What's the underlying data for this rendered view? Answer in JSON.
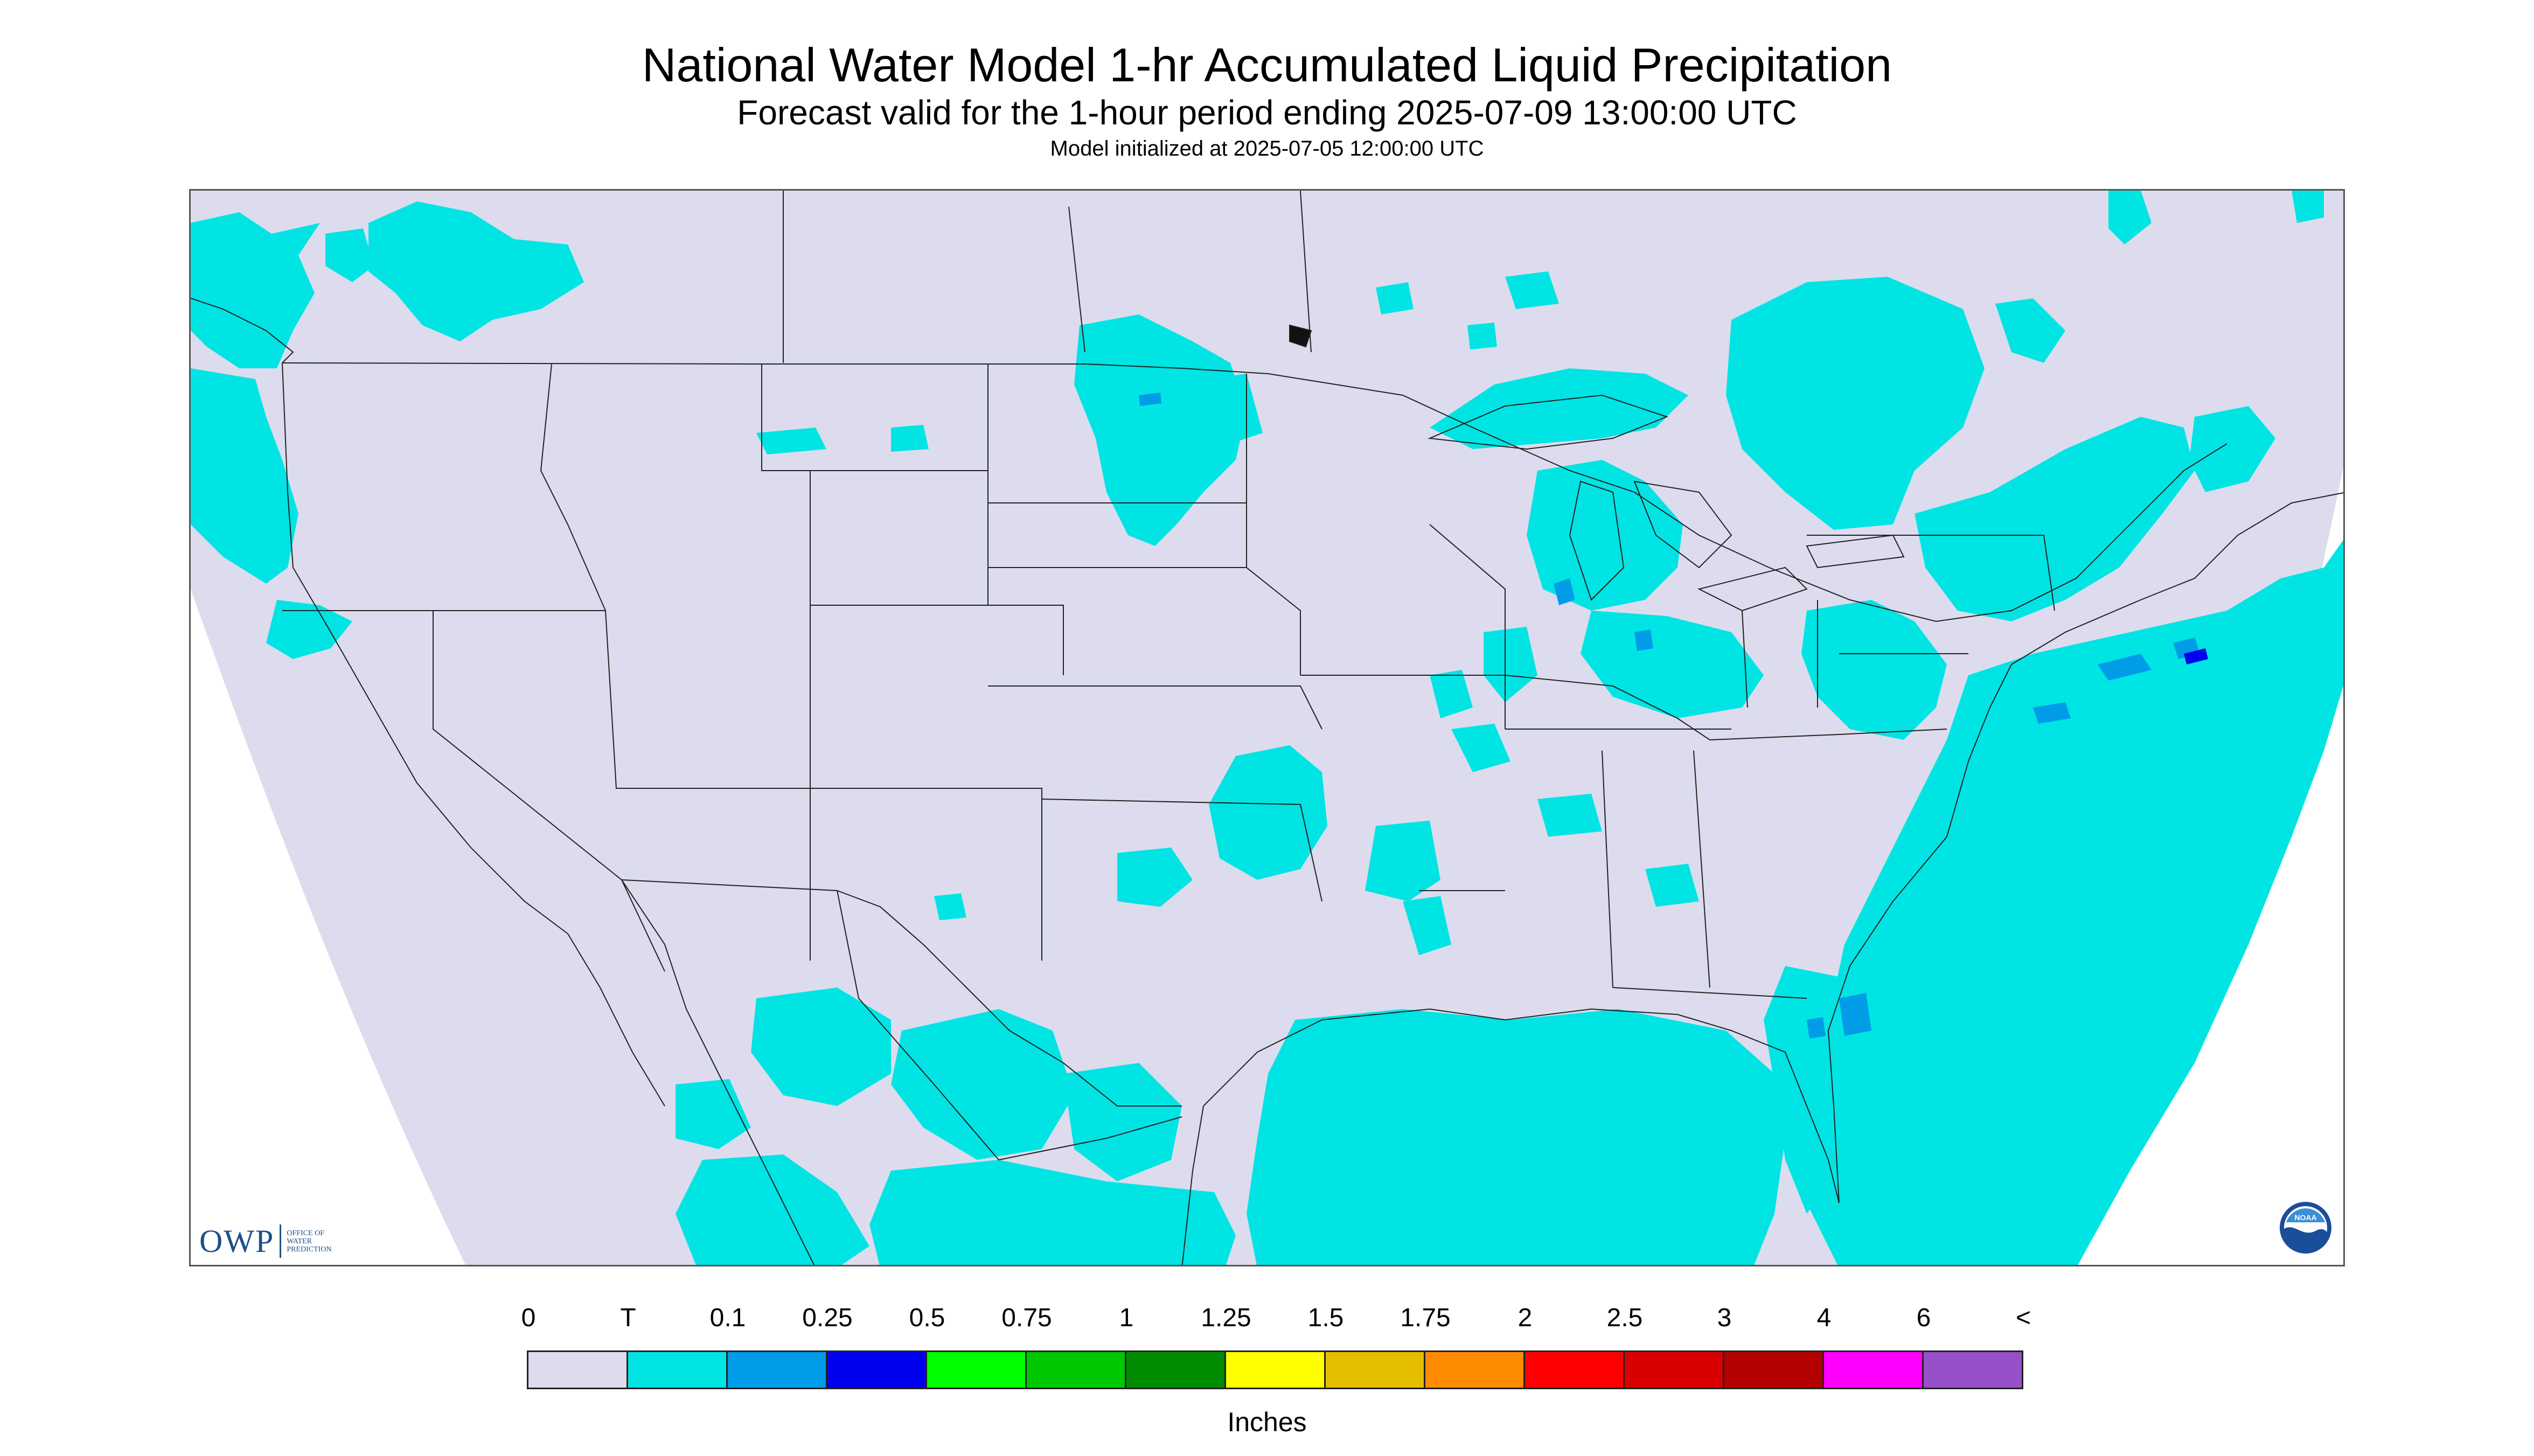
{
  "header": {
    "title": "National Water Model 1-hr Accumulated Liquid Precipitation",
    "subtitle": "Forecast valid for the 1-hour period ending 2025-07-09 13:00:00 UTC",
    "init_line": "Model initialized at 2025-07-05 12:00:00 UTC"
  },
  "map": {
    "background_color": "#dcdcee",
    "outside_domain_color": "#ffffff",
    "boundary_color": "#222222",
    "precip_regions": [
      {
        "name": "Pacific Northwest coast",
        "category": "T"
      },
      {
        "name": "Southern British Columbia",
        "category": "T"
      },
      {
        "name": "Northern Minnesota / Dakotas",
        "category": "T"
      },
      {
        "name": "Great Lakes and Ontario",
        "category": "T"
      },
      {
        "name": "Lake Michigan",
        "category": "0.1"
      },
      {
        "name": "Ohio Valley",
        "category": "T"
      },
      {
        "name": "Northeast and New England",
        "category": "T"
      },
      {
        "name": "Mid-Atlantic coast and offshore",
        "category": "0.1"
      },
      {
        "name": "Southeast coast and Atlantic",
        "category": "T"
      },
      {
        "name": "Florida",
        "category": "0.1"
      },
      {
        "name": "Gulf of Mexico",
        "category": "T"
      },
      {
        "name": "Texas / Oklahoma",
        "category": "T"
      },
      {
        "name": "Northern Mexico",
        "category": "T"
      }
    ]
  },
  "logos": {
    "owp_text": "OWP",
    "owp_subtext": [
      "OFFICE OF",
      "WATER",
      "PREDICTION"
    ],
    "noaa_text": "NOAA"
  },
  "legend": {
    "labels": [
      "0",
      "T",
      "0.1",
      "0.25",
      "0.5",
      "0.75",
      "1",
      "1.25",
      "1.5",
      "1.75",
      "2",
      "2.5",
      "3",
      "4",
      "6",
      "<"
    ],
    "colors": [
      "#dcdcee",
      "#00e4e4",
      "#009ce8",
      "#0000f0",
      "#00ff00",
      "#00c800",
      "#008c00",
      "#ffff00",
      "#e6be00",
      "#ff8c00",
      "#ff0000",
      "#d80000",
      "#b40000",
      "#ff00ff",
      "#9650c8"
    ],
    "unit": "Inches"
  }
}
